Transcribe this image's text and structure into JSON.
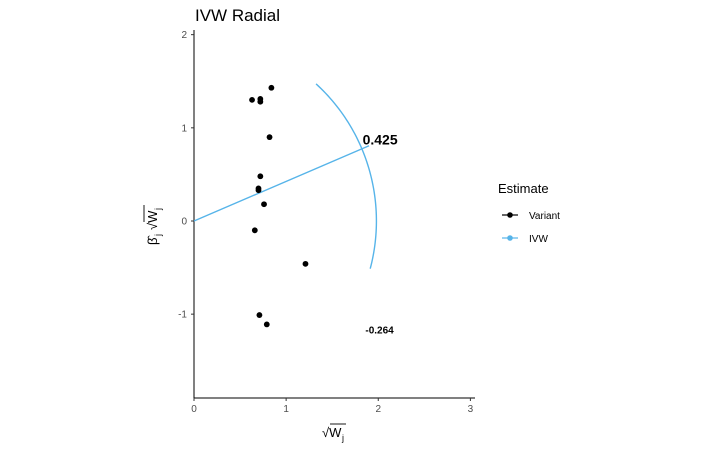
{
  "chart_data": {
    "type": "scatter",
    "title": "IVW Radial",
    "xlabel_symbol": "√W",
    "xlabel_subscript": "j",
    "ylabel_symbol": "β̂",
    "ylabel_subscript": "j",
    "xlim": [
      0,
      3.05
    ],
    "ylim": [
      -1.9,
      2.05
    ],
    "xticks": [
      0,
      1,
      2,
      3
    ],
    "yticks": [
      -1,
      0,
      1,
      2
    ],
    "xtick_labels": [
      "0",
      "1",
      "2",
      "3"
    ],
    "ytick_labels": [
      "-1",
      "0",
      "1",
      "2"
    ],
    "grid": false,
    "legend_position": "right",
    "legend_title": "Estimate",
    "legend": [
      {
        "label": "Variant",
        "color": "#000000"
      },
      {
        "label": "IVW",
        "color": "#56b4e9"
      }
    ],
    "series": [
      {
        "name": "Variant",
        "points": [
          {
            "x": 0.84,
            "y": 1.43
          },
          {
            "x": 0.63,
            "y": 1.3
          },
          {
            "x": 0.72,
            "y": 1.31
          },
          {
            "x": 0.72,
            "y": 1.28
          },
          {
            "x": 0.82,
            "y": 0.9
          },
          {
            "x": 0.72,
            "y": 0.48
          },
          {
            "x": 0.7,
            "y": 0.35
          },
          {
            "x": 0.7,
            "y": 0.33
          },
          {
            "x": 0.76,
            "y": 0.18
          },
          {
            "x": 0.66,
            "y": -0.1
          },
          {
            "x": 1.21,
            "y": -0.46
          },
          {
            "x": 0.71,
            "y": -1.01
          },
          {
            "x": 0.79,
            "y": -1.11
          }
        ]
      },
      {
        "name": "IVW",
        "slope": 0.425,
        "line_end_x": 1.9
      }
    ],
    "arc": {
      "radius": 1.98,
      "from_deg": -15,
      "to_deg": 48
    },
    "annotations": [
      {
        "text": "0.425",
        "x": 1.83,
        "y": 0.82,
        "style": "big"
      },
      {
        "text": "-0.264",
        "x": 1.86,
        "y": -1.21,
        "style": "small"
      }
    ],
    "colors": {
      "variant": "#000000",
      "ivw": "#56b4e9",
      "axis": "#000000",
      "tick_text": "#4d4d4d"
    }
  }
}
